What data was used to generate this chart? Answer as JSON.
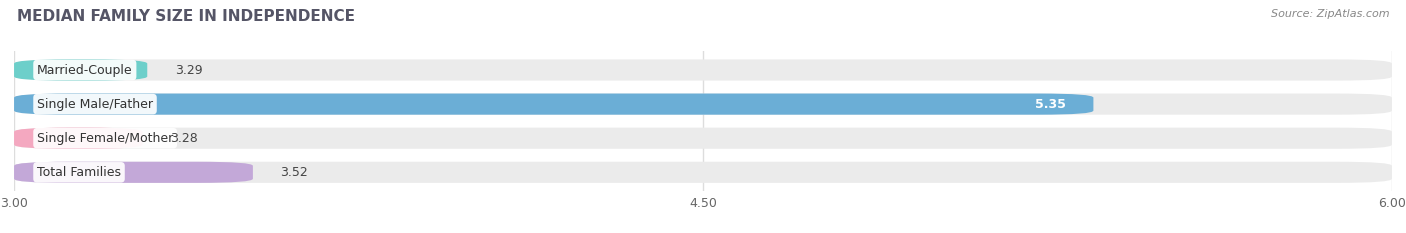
{
  "title": "MEDIAN FAMILY SIZE IN INDEPENDENCE",
  "source": "Source: ZipAtlas.com",
  "categories": [
    "Married-Couple",
    "Single Male/Father",
    "Single Female/Mother",
    "Total Families"
  ],
  "values": [
    3.29,
    5.35,
    3.28,
    3.52
  ],
  "bar_colors": [
    "#6DCFCA",
    "#6BAED6",
    "#F4A8C0",
    "#C3A8D8"
  ],
  "value_inside": [
    false,
    true,
    false,
    false
  ],
  "xlim": [
    3.0,
    6.0
  ],
  "xticks": [
    3.0,
    4.5,
    6.0
  ],
  "xtick_labels": [
    "3.00",
    "4.50",
    "6.00"
  ],
  "bar_height": 0.62,
  "background_color": "#ffffff",
  "bar_background_color": "#ebebeb",
  "title_color": "#555566",
  "source_color": "#888888",
  "grid_color": "#dddddd",
  "value_font_size": 9,
  "label_font_size": 9
}
